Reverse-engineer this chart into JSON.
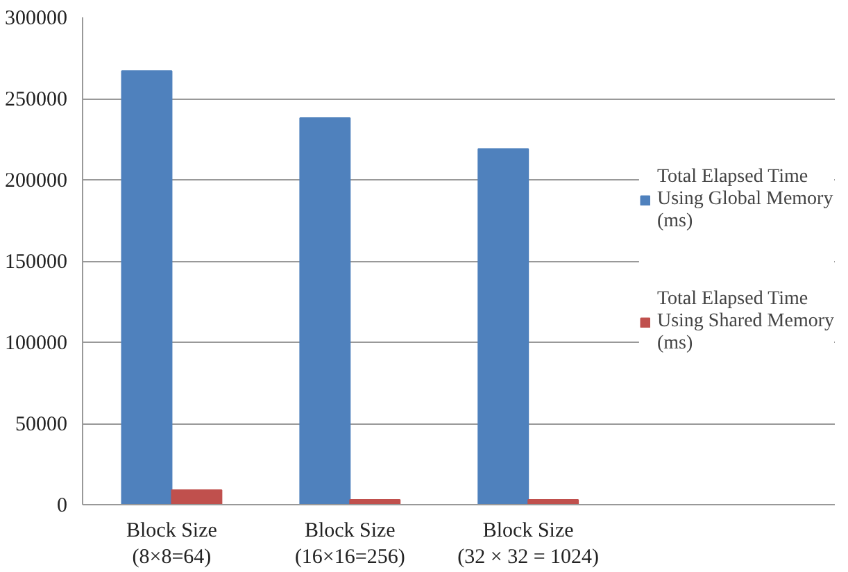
{
  "chart_data": {
    "type": "bar",
    "categories": [
      "Block Size\n(8×8=64)",
      "Block Size\n(16×16=256)",
      "Block Size\n(32 × 32 = 1024)"
    ],
    "series": [
      {
        "name": "Total Elapsed Time Using Global Memory (ms)",
        "color": "#4f81bd",
        "values": [
          267000,
          238000,
          219000
        ]
      },
      {
        "name": "Total Elapsed Time Using Shared Memory (ms)",
        "color": "#c0504d",
        "values": [
          9000,
          3000,
          3000
        ]
      }
    ],
    "ylim": [
      0,
      300000
    ],
    "yticks": [
      0,
      50000,
      100000,
      150000,
      200000,
      250000,
      300000
    ],
    "grid": "y",
    "legend": "right"
  }
}
